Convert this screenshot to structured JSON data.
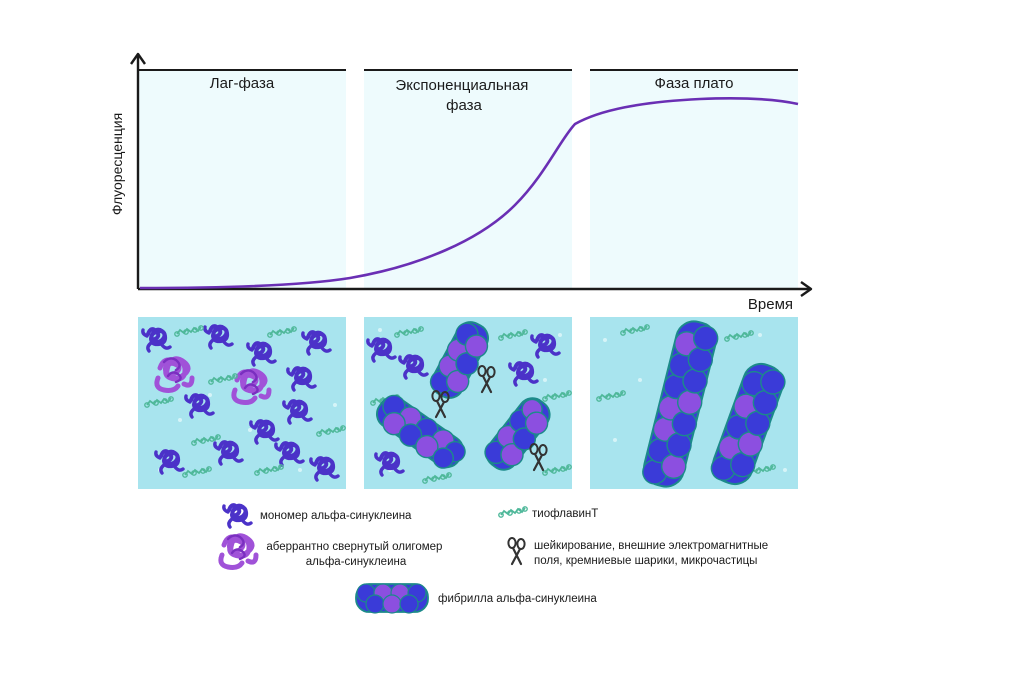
{
  "phases": [
    {
      "label_lines": [
        "Лаг-фаза"
      ]
    },
    {
      "label_lines": [
        "Экспоненциальная",
        "фаза"
      ]
    },
    {
      "label_lines": [
        "Фаза плато"
      ]
    }
  ],
  "axes": {
    "ylabel": "Флуоресценция",
    "xlabel": "Время"
  },
  "legend": {
    "monomer": "мономер альфа-синуклеина",
    "oligomer_lines": [
      "аберрантно свернутый олигомер",
      "альфа-синуклеина"
    ],
    "fibril": "фибрилла альфа-синуклеина",
    "thioflavin": "тиофлавинТ",
    "factors_lines": [
      "шейкирование, внешние электромагнитные",
      "поля, кремниевые шарики, микрочастицы"
    ]
  },
  "colors": {
    "phase_bg": "#eefbfd",
    "panel_bg": "#a8e4ee",
    "curve": "#6a2fb4",
    "monomer": "#4b32c8",
    "oligomer": "#a052d8",
    "fibril_blue": "#3a3bd8",
    "fibril_purple": "#8c4fe0",
    "fibril_edge": "#1c8a8a",
    "thioflavin": "#4fb89a",
    "scissors": "#333333"
  },
  "icons": {
    "monomer": "coiled-protein-monomer-icon",
    "oligomer": "misfolded-oligomer-icon",
    "fibril": "amyloid-fibril-icon",
    "thioflavin": "thioflavin-t-molecule-icon",
    "scissors": "fragmentation-scissors-icon"
  }
}
